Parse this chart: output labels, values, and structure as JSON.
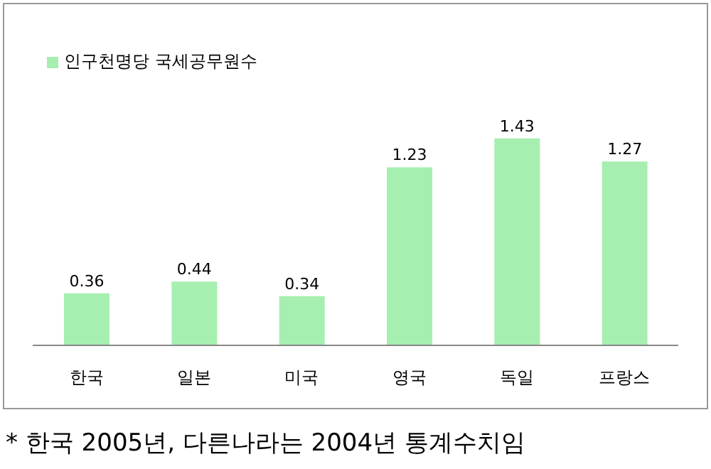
{
  "chart_data": {
    "type": "bar",
    "categories": [
      "한국",
      "일본",
      "미국",
      "영국",
      "독일",
      "프랑스"
    ],
    "series": [
      {
        "name": "인구천명당 국세공무원수",
        "color": "#a6efb0",
        "values": [
          0.36,
          0.44,
          0.34,
          1.23,
          1.43,
          1.27
        ]
      }
    ],
    "data_labels": true,
    "legend": "top left",
    "grid": false,
    "annotations": [
      "* 한국 2005년, 다른나라는 2004년 통계수치임"
    ]
  }
}
